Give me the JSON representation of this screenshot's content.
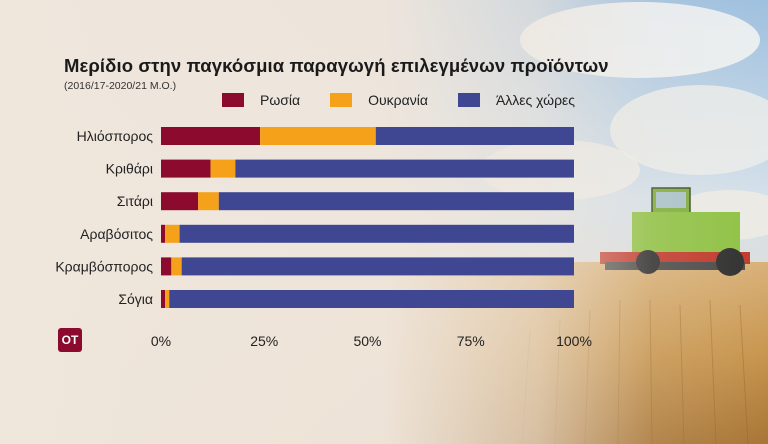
{
  "title": "Μερίδιο στην παγκόσμια παραγωγή επιλεγμένων προϊόντων",
  "subtitle": "(2016/17-2020/21 Μ.Ο.)",
  "logo_text": "OT",
  "colors": {
    "russia": "#8b0a2e",
    "ukraine": "#f6a11a",
    "others": "#3f4793",
    "logo_bg": "#8b0a2e"
  },
  "chart_data": {
    "type": "bar",
    "orientation": "horizontal",
    "stacked": true,
    "title": "Μερίδιο στην παγκόσμια παραγωγή επιλεγμένων προϊόντων",
    "subtitle": "(2016/17-2020/21 Μ.Ο.)",
    "categories": [
      "Ηλιόσπορος",
      "Κριθάρι",
      "Σιτάρι",
      "Αραβόσιτος",
      "Κραμβόσπορος",
      "Σόγια"
    ],
    "series": [
      {
        "name": "Ρωσία",
        "color": "#8b0a2e",
        "values": [
          24,
          12,
          9,
          1,
          2.5,
          1
        ]
      },
      {
        "name": "Ουκρανία",
        "color": "#f6a11a",
        "values": [
          28,
          6,
          5,
          3.5,
          2.5,
          1
        ]
      },
      {
        "name": "Άλλες χώρες",
        "color": "#3f4793",
        "values": [
          48,
          82,
          86,
          95.5,
          95,
          98
        ]
      }
    ],
    "xlim": [
      0,
      100
    ],
    "xticks": [
      0,
      25,
      50,
      75,
      100
    ],
    "xtick_labels": [
      "0%",
      "25%",
      "50%",
      "75%",
      "100%"
    ],
    "legend_position": "top",
    "grid": false
  }
}
